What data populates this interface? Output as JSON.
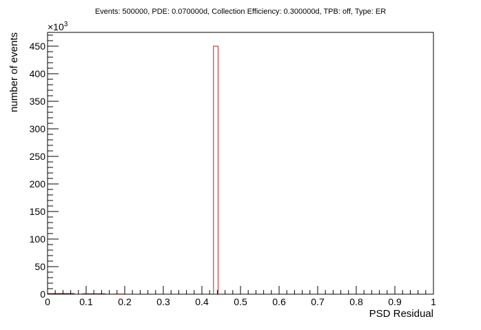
{
  "chart_data": {
    "type": "bar",
    "title": "Events: 500000, PDE: 0.070000d, Collection Efficiency: 0.300000d, TPB: off, Type: ER",
    "xlabel": "PSD Residual",
    "ylabel": "number of events",
    "y_multiplier_label": "×10",
    "y_multiplier_exp": "3",
    "xlim": [
      0,
      1
    ],
    "ylim": [
      0,
      475
    ],
    "x_ticks": [
      "0",
      "0.1",
      "0.2",
      "0.3",
      "0.4",
      "0.5",
      "0.6",
      "0.7",
      "0.8",
      "0.9",
      "1"
    ],
    "y_ticks": [
      "0",
      "50",
      "100",
      "150",
      "200",
      "250",
      "300",
      "350",
      "400",
      "450"
    ],
    "bar_color": "#b22222",
    "grid": false,
    "bins": [
      {
        "x0": 0.0,
        "x1": 0.07,
        "value": 1.2
      },
      {
        "x0": 0.09,
        "x1": 0.15,
        "value": 1.0
      },
      {
        "x0": 0.17,
        "x1": 0.2,
        "value": 0.5
      },
      {
        "x0": 0.43,
        "x1": 0.442,
        "value": 450
      }
    ]
  }
}
